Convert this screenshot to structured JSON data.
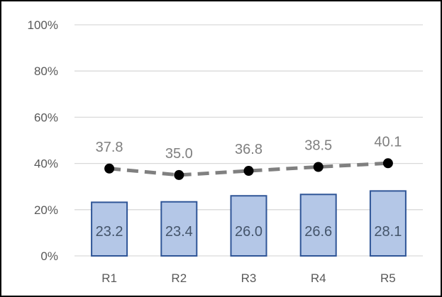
{
  "chart_data": {
    "type": "bar",
    "categories": [
      "R1",
      "R2",
      "R3",
      "R4",
      "R5"
    ],
    "y_tick_labels": [
      "0%",
      "20%",
      "40%",
      "60%",
      "80%",
      "100%"
    ],
    "ylim": [
      0,
      100
    ],
    "grid": true,
    "legend": "none",
    "series": [
      {
        "type": "bar",
        "values": [
          23.2,
          23.4,
          26.0,
          26.6,
          28.1
        ],
        "value_labels": [
          "23.2",
          "23.4",
          "26.0",
          "26.6",
          "28.1"
        ],
        "fill_color": "#b4c7e7",
        "stroke_color": "#2f5597",
        "label_color": "#44546a"
      },
      {
        "type": "line",
        "line_style": "dashed",
        "marker": "circle",
        "values": [
          37.8,
          35.0,
          36.8,
          38.5,
          40.1
        ],
        "value_labels": [
          "37.8",
          "35.0",
          "36.8",
          "38.5",
          "40.1"
        ],
        "line_color": "#808080",
        "marker_color": "#000000",
        "label_color": "#7f7f7f"
      }
    ],
    "colors": {
      "gridline": "#d9d9d9",
      "axis_text": "#595959",
      "frame": "#000000"
    }
  }
}
